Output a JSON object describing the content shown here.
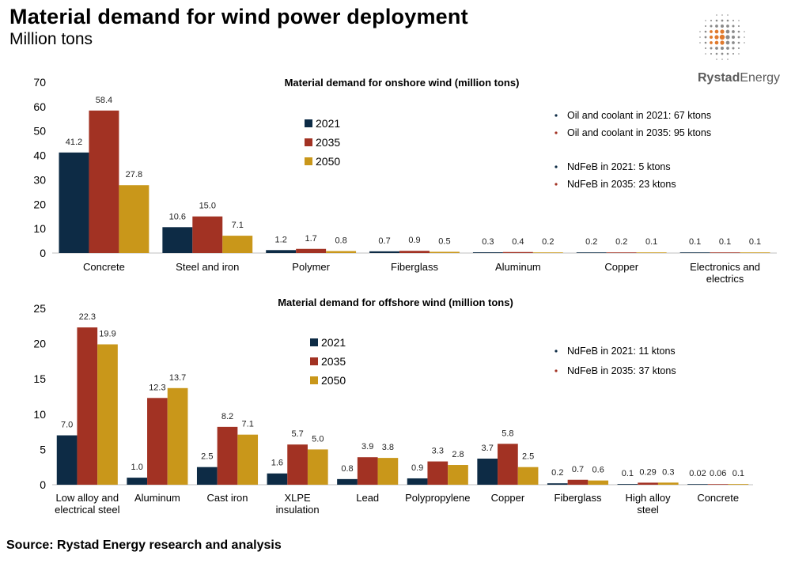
{
  "header": {
    "title": "Material demand for wind power deployment",
    "subtitle": "Million tons"
  },
  "logo": {
    "brand_bold": "Rystad",
    "brand_regular": "Energy"
  },
  "source": "Source: Rystad Energy research and analysis",
  "colors": {
    "2021": "#0d2b45",
    "2035": "#a23223",
    "2050": "#c9971a"
  },
  "chart_data": [
    {
      "type": "bar",
      "title": "Material demand for onshore wind (million tons)",
      "categories": [
        "Concrete",
        "Steel and iron",
        "Polymer",
        "Fiberglass",
        "Aluminum",
        "Copper",
        "Electronics and electrics"
      ],
      "series": [
        {
          "name": "2021",
          "values": [
            41.2,
            10.6,
            1.2,
            0.7,
            0.3,
            0.2,
            0.1
          ],
          "labels": [
            "41.2",
            "10.6",
            "1.2",
            "0.7",
            "0.3",
            "0.2",
            "0.1"
          ]
        },
        {
          "name": "2035",
          "values": [
            58.4,
            15.0,
            1.7,
            0.9,
            0.4,
            0.2,
            0.1
          ],
          "labels": [
            "58.4",
            "15.0",
            "1.7",
            "0.9",
            "0.4",
            "0.2",
            "0.1"
          ]
        },
        {
          "name": "2050",
          "values": [
            27.8,
            7.1,
            0.8,
            0.5,
            0.2,
            0.1,
            0.1
          ],
          "labels": [
            "27.8",
            "7.1",
            "0.8",
            "0.5",
            "0.2",
            "0.1",
            "0.1"
          ]
        }
      ],
      "ylim": [
        0,
        70
      ],
      "yticks": [
        "0",
        "10",
        "20",
        "30",
        "40",
        "50",
        "60",
        "70"
      ],
      "legend_position": "center",
      "annotations": [
        {
          "year": "2021",
          "text": "Oil and coolant in 2021: 67 ktons"
        },
        {
          "year": "2035",
          "text": "Oil and coolant in 2035: 95 ktons"
        },
        {
          "year": "2021",
          "text": "NdFeB in 2021: 5 ktons"
        },
        {
          "year": "2035",
          "text": "NdFeB in 2035: 23 ktons"
        }
      ]
    },
    {
      "type": "bar",
      "title": "Material demand for offshore wind (million tons)",
      "categories": [
        "Low alloy and electrical steel",
        "Aluminum",
        "Cast iron",
        "XLPE insulation",
        "Lead",
        "Polypropylene",
        "Copper",
        "Fiberglass",
        "High alloy steel",
        "Concrete"
      ],
      "series": [
        {
          "name": "2021",
          "values": [
            7.0,
            1.0,
            2.5,
            1.6,
            0.8,
            0.9,
            3.7,
            0.2,
            0.1,
            0.02
          ],
          "labels": [
            "7.0",
            "1.0",
            "2.5",
            "1.6",
            "0.8",
            "0.9",
            "3.7",
            "0.2",
            "0.1",
            "0.02"
          ]
        },
        {
          "name": "2035",
          "values": [
            22.3,
            12.3,
            8.2,
            5.7,
            3.9,
            3.3,
            5.8,
            0.7,
            0.29,
            0.06
          ],
          "labels": [
            "22.3",
            "12.3",
            "8.2",
            "5.7",
            "3.9",
            "3.3",
            "5.8",
            "0.7",
            "0.29",
            "0.06"
          ]
        },
        {
          "name": "2050",
          "values": [
            19.9,
            13.7,
            7.1,
            5.0,
            3.8,
            2.8,
            2.5,
            0.6,
            0.3,
            0.1
          ],
          "labels": [
            "19.9",
            "13.7",
            "7.1",
            "5.0",
            "3.8",
            "2.8",
            "2.5",
            "0.6",
            "0.3",
            "0.1"
          ]
        }
      ],
      "ylim": [
        0,
        25
      ],
      "yticks": [
        "0",
        "5",
        "10",
        "15",
        "20",
        "25"
      ],
      "legend_position": "center",
      "annotations": [
        {
          "year": "2021",
          "text": "NdFeB in 2021: 11 ktons"
        },
        {
          "year": "2035",
          "text": "NdFeB in 2035: 37 ktons"
        }
      ]
    }
  ]
}
